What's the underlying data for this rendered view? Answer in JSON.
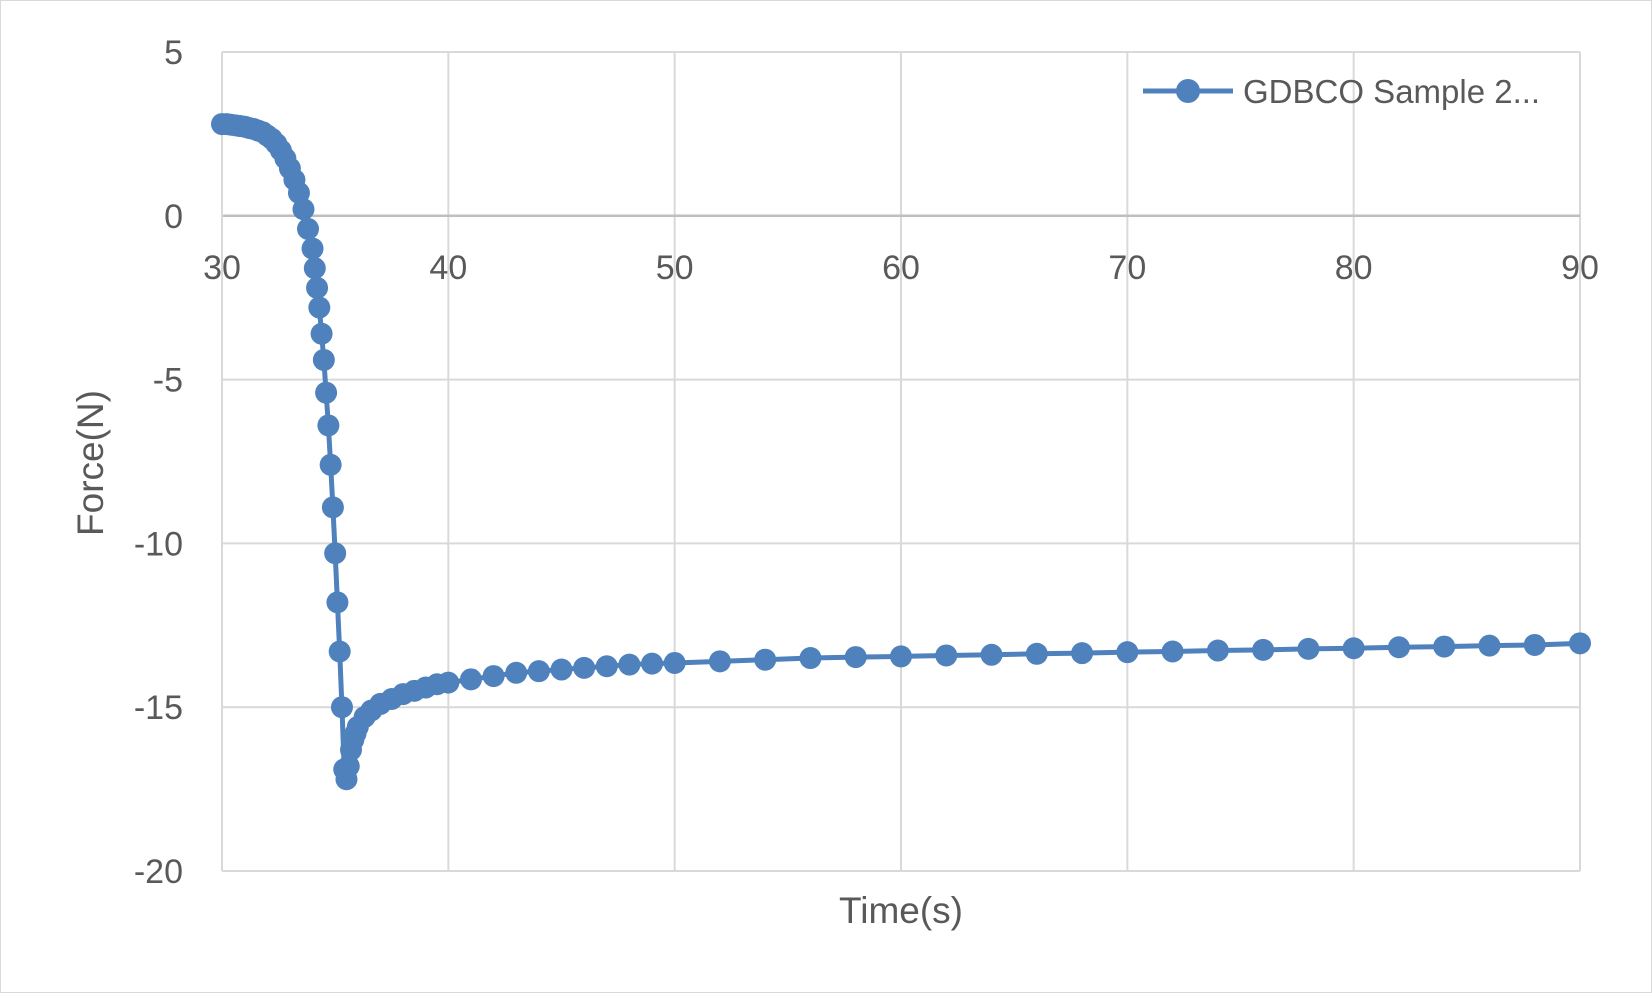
{
  "chart_data": {
    "type": "scatter",
    "title": "",
    "xlabel": "Time(s)",
    "ylabel": "Force(N)",
    "xlim": [
      30,
      90
    ],
    "ylim": [
      -20,
      5
    ],
    "x_ticks": [
      "30",
      "40",
      "50",
      "60",
      "70",
      "80",
      "90"
    ],
    "y_ticks": [
      "5",
      "0",
      "-5",
      "-10",
      "-15",
      "-20"
    ],
    "grid": true,
    "legend_position": "top-right",
    "series": [
      {
        "name": "GDBCO Sample 2...",
        "color": "#4f81bd",
        "marker": "circle",
        "line": true,
        "x": [
          30,
          30.2,
          30.4,
          30.6,
          30.8,
          31.0,
          31.2,
          31.4,
          31.6,
          31.8,
          32.0,
          32.2,
          32.4,
          32.6,
          32.8,
          33.0,
          33.2,
          33.4,
          33.6,
          33.8,
          34.0,
          34.1,
          34.2,
          34.3,
          34.4,
          34.5,
          34.6,
          34.7,
          34.8,
          34.9,
          35.0,
          35.1,
          35.2,
          35.3,
          35.4,
          35.5,
          35.6,
          35.7,
          35.8,
          35.9,
          36.0,
          36.3,
          36.6,
          37.0,
          37.5,
          38.0,
          38.5,
          39.0,
          39.5,
          40,
          41,
          42,
          43,
          44,
          45,
          46,
          47,
          48,
          49,
          50,
          52,
          54,
          56,
          58,
          60,
          62,
          64,
          66,
          68,
          70,
          72,
          74,
          76,
          78,
          80,
          82,
          84,
          86,
          88,
          90
        ],
        "y": [
          2.8,
          2.8,
          2.78,
          2.76,
          2.74,
          2.72,
          2.68,
          2.65,
          2.6,
          2.55,
          2.45,
          2.35,
          2.2,
          2.0,
          1.75,
          1.45,
          1.1,
          0.7,
          0.2,
          -0.4,
          -1.0,
          -1.6,
          -2.2,
          -2.8,
          -3.6,
          -4.4,
          -5.4,
          -6.4,
          -7.6,
          -8.9,
          -10.3,
          -11.8,
          -13.3,
          -15.0,
          -16.9,
          -17.2,
          -16.8,
          -16.3,
          -16.0,
          -15.8,
          -15.6,
          -15.3,
          -15.1,
          -14.9,
          -14.75,
          -14.6,
          -14.5,
          -14.4,
          -14.3,
          -14.25,
          -14.15,
          -14.05,
          -13.95,
          -13.9,
          -13.85,
          -13.8,
          -13.75,
          -13.7,
          -13.67,
          -13.65,
          -13.6,
          -13.55,
          -13.5,
          -13.47,
          -13.45,
          -13.42,
          -13.4,
          -13.37,
          -13.35,
          -13.32,
          -13.3,
          -13.27,
          -13.25,
          -13.22,
          -13.2,
          -13.17,
          -13.15,
          -13.12,
          -13.1,
          -13.05
        ]
      }
    ]
  }
}
